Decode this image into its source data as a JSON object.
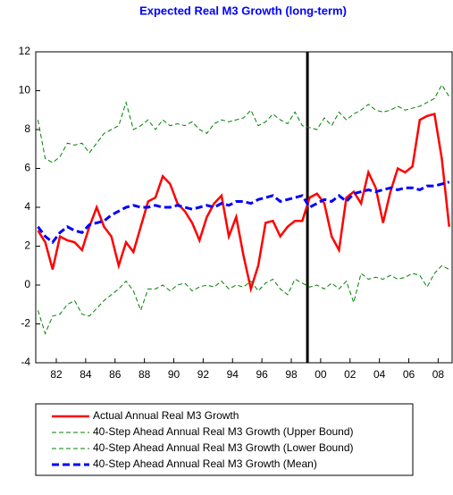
{
  "chart_data": {
    "type": "line",
    "title": "Expected Real M3 Growth (long-term)",
    "x": [
      1980.75,
      1981.25,
      1981.75,
      1982.25,
      1982.75,
      1983.25,
      1983.75,
      1984.25,
      1984.75,
      1985.25,
      1985.75,
      1986.25,
      1986.75,
      1987.25,
      1987.75,
      1988.25,
      1988.75,
      1989.25,
      1989.75,
      1990.25,
      1990.75,
      1991.25,
      1991.75,
      1992.25,
      1992.75,
      1993.25,
      1993.75,
      1994.25,
      1994.75,
      1995.25,
      1995.75,
      1996.25,
      1996.75,
      1997.25,
      1997.75,
      1998.25,
      1998.75,
      1999.25,
      1999.75,
      2000.25,
      2000.75,
      2001.25,
      2001.75,
      2002.25,
      2002.75,
      2003.25,
      2003.75,
      2004.25,
      2004.75,
      2005.25,
      2005.75,
      2006.25,
      2006.75,
      2007.25,
      2007.75,
      2008.25,
      2008.75
    ],
    "series": [
      {
        "name": "Actual Annual Real M3 Growth",
        "color": "#ff0000",
        "dash": "solid",
        "values": [
          2.8,
          2.2,
          0.8,
          2.5,
          2.3,
          2.2,
          1.8,
          3.0,
          4.0,
          3.0,
          2.5,
          1.0,
          2.2,
          1.7,
          3.0,
          4.3,
          4.5,
          5.6,
          5.2,
          4.2,
          3.8,
          3.2,
          2.3,
          3.5,
          4.2,
          4.6,
          2.5,
          3.5,
          1.5,
          -0.2,
          1.0,
          3.2,
          3.3,
          2.5,
          3.0,
          3.3,
          3.3,
          4.5,
          4.7,
          4.2,
          2.5,
          1.8,
          4.5,
          4.8,
          4.2,
          5.8,
          5.0,
          3.2,
          4.8,
          6.0,
          5.8,
          6.1,
          8.5,
          8.7,
          8.8,
          6.5,
          3.0
        ]
      },
      {
        "name": "40-Step Ahead Annual Real M3 Growth (Upper Bound)",
        "color": "#008000",
        "dash": "dashed",
        "values": [
          8.5,
          6.5,
          6.3,
          6.6,
          7.3,
          7.2,
          7.3,
          6.8,
          7.3,
          7.8,
          8.0,
          8.2,
          9.4,
          8.0,
          8.2,
          8.5,
          8.0,
          8.5,
          8.2,
          8.3,
          8.2,
          8.4,
          8.0,
          7.8,
          8.3,
          8.5,
          8.4,
          8.5,
          8.6,
          9.0,
          8.2,
          8.4,
          8.8,
          8.5,
          8.3,
          8.9,
          8.2,
          8.1,
          8.0,
          8.6,
          8.2,
          8.9,
          8.5,
          8.8,
          9.0,
          9.3,
          9.0,
          8.9,
          9.0,
          9.2,
          9.0,
          9.1,
          9.2,
          9.4,
          9.6,
          10.3,
          9.7
        ]
      },
      {
        "name": "40-Step Ahead Annual Real M3 Growth (Lower Bound)",
        "color": "#008000",
        "dash": "dashed",
        "values": [
          -1.3,
          -2.5,
          -1.6,
          -1.5,
          -1.0,
          -0.8,
          -1.5,
          -1.6,
          -1.2,
          -0.8,
          -0.5,
          -0.2,
          0.2,
          -0.3,
          -1.3,
          -0.2,
          -0.2,
          0.0,
          -0.3,
          0.0,
          0.1,
          -0.3,
          -0.1,
          0.0,
          -0.1,
          0.2,
          -0.2,
          0.0,
          -0.1,
          0.2,
          -0.3,
          0.1,
          0.3,
          -0.2,
          -0.5,
          0.3,
          0.1,
          -0.1,
          0.0,
          -0.2,
          0.1,
          -0.2,
          0.2,
          -0.9,
          0.6,
          0.3,
          0.4,
          0.3,
          0.5,
          0.3,
          0.4,
          0.6,
          0.5,
          -0.1,
          0.6,
          1.0,
          0.8
        ]
      },
      {
        "name": "40-Step Ahead Annual Real M3 Growth (Mean)",
        "color": "#0000ff",
        "dash": "bold-dashed",
        "values": [
          3.0,
          2.5,
          2.2,
          2.7,
          3.0,
          2.8,
          2.7,
          3.1,
          3.2,
          3.3,
          3.6,
          3.8,
          4.0,
          4.1,
          4.0,
          4.0,
          4.1,
          4.0,
          4.0,
          4.1,
          4.0,
          3.9,
          4.0,
          4.1,
          4.0,
          4.2,
          4.1,
          4.3,
          4.3,
          4.2,
          4.4,
          4.5,
          4.6,
          4.3,
          4.4,
          4.5,
          4.6,
          4.0,
          4.2,
          4.4,
          4.3,
          4.6,
          4.3,
          4.7,
          4.8,
          4.9,
          4.8,
          4.9,
          5.0,
          4.9,
          5.0,
          5.0,
          4.9,
          5.1,
          5.1,
          5.2,
          5.3
        ]
      }
    ],
    "xlim": [
      1980.6,
      2008.95
    ],
    "ylim": [
      -4,
      12
    ],
    "yticks": [
      -4,
      -2,
      0,
      2,
      4,
      6,
      8,
      10,
      12
    ],
    "xticks": [
      {
        "value": 1982,
        "label": "82"
      },
      {
        "value": 1984,
        "label": "84"
      },
      {
        "value": 1986,
        "label": "86"
      },
      {
        "value": 1988,
        "label": "88"
      },
      {
        "value": 1990,
        "label": "90"
      },
      {
        "value": 1992,
        "label": "92"
      },
      {
        "value": 1994,
        "label": "94"
      },
      {
        "value": 1996,
        "label": "96"
      },
      {
        "value": 1998,
        "label": "98"
      },
      {
        "value": 2000,
        "label": "00"
      },
      {
        "value": 2002,
        "label": "02"
      },
      {
        "value": 2004,
        "label": "04"
      },
      {
        "value": 2006,
        "label": "06"
      },
      {
        "value": 2008,
        "label": "08"
      }
    ],
    "vertical_line_x": 1999.1,
    "grid": false,
    "legend": "bottom"
  }
}
